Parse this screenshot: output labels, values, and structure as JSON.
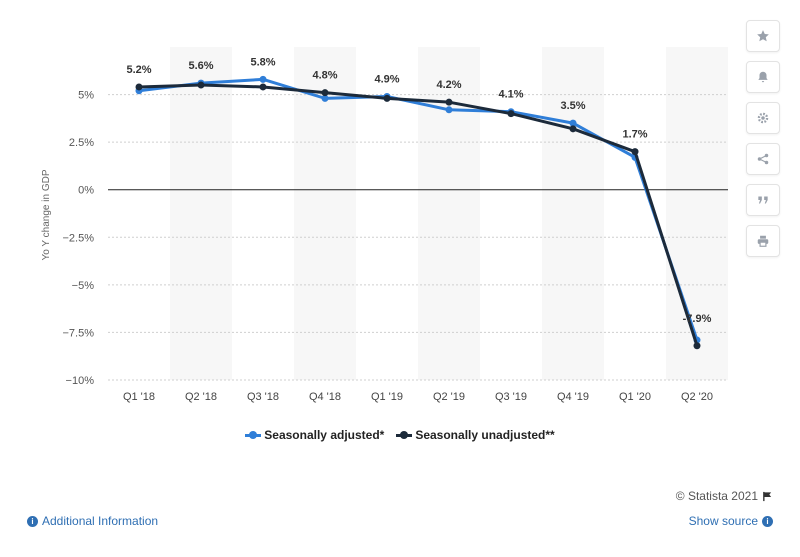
{
  "chart_data": {
    "type": "line",
    "categories": [
      "Q1 '18",
      "Q2 '18",
      "Q3 '18",
      "Q4 '18",
      "Q1 '19",
      "Q2 '19",
      "Q3 '19",
      "Q4 '19",
      "Q1 '20",
      "Q2 '20"
    ],
    "series": [
      {
        "name": "Seasonally adjusted*",
        "color": "#2f7ed8",
        "values": [
          5.2,
          5.6,
          5.8,
          4.8,
          4.9,
          4.2,
          4.1,
          3.5,
          1.7,
          -7.9
        ]
      },
      {
        "name": "Seasonally unadjusted**",
        "color": "#1c2a3a",
        "values": [
          5.4,
          5.5,
          5.4,
          5.1,
          4.8,
          4.6,
          4.0,
          3.2,
          2.0,
          -8.2
        ]
      }
    ],
    "data_labels": [
      "5.2%",
      "5.6%",
      "5.8%",
      "4.8%",
      "4.9%",
      "4.2%",
      "4.1%",
      "3.5%",
      "1.7%",
      "-7.9%"
    ],
    "ylabel": "Yo Y change in GDP",
    "yticks": [
      5,
      2.5,
      0,
      -2.5,
      -5,
      -7.5,
      -10
    ],
    "ytick_labels": [
      "5%",
      "2.5%",
      "0%",
      "-2.5%",
      "-5%",
      "-7.5%",
      "-10%"
    ],
    "ylim": [
      -10,
      7.5
    ],
    "grid": true,
    "legend": "bottom"
  },
  "legend": {
    "adjusted_label": "Seasonally adjusted*",
    "unadjusted_label": "Seasonally unadjusted**"
  },
  "footer": {
    "credit": "© Statista 2021",
    "additional_info": "Additional Information",
    "show_source": "Show source"
  },
  "toolbar": {
    "icons": [
      "star-icon",
      "bell-icon",
      "gear-icon",
      "share-icon",
      "quote-icon",
      "print-icon"
    ]
  }
}
